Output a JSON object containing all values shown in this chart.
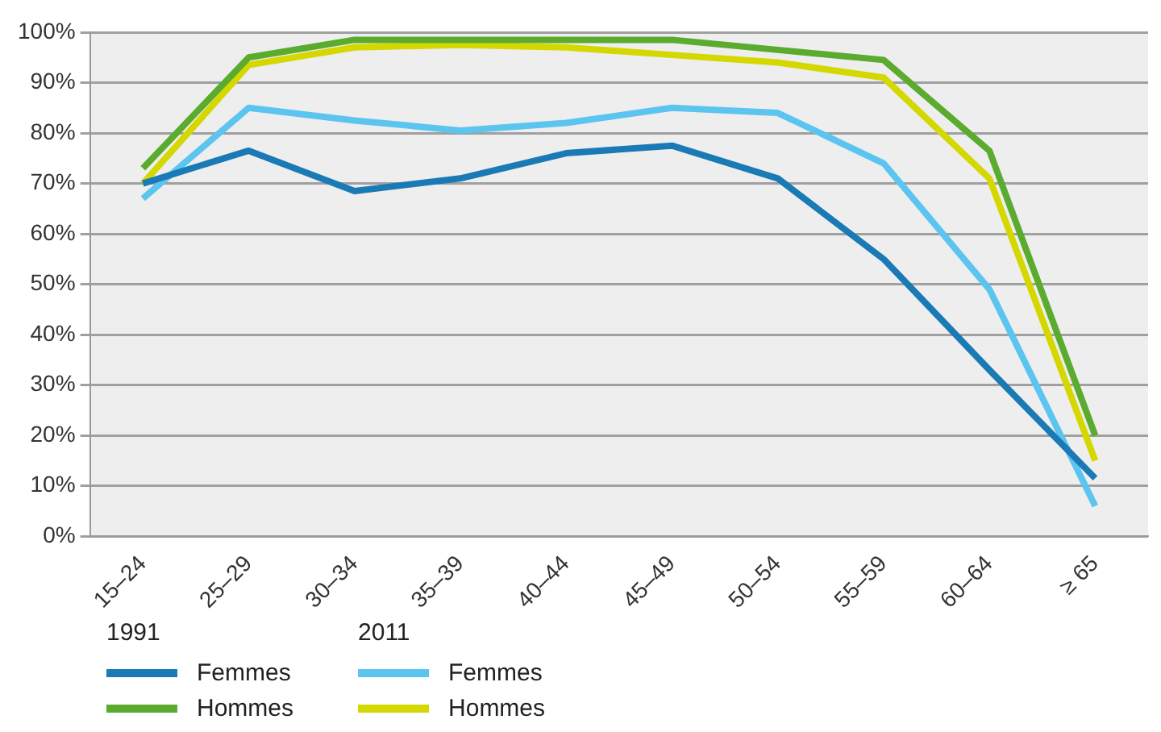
{
  "chart_data": {
    "type": "line",
    "categories": [
      "15–24",
      "25–29",
      "30–34",
      "35–39",
      "40–44",
      "45–49",
      "50–54",
      "55–59",
      "60–64",
      "≥ 65"
    ],
    "series": [
      {
        "name": "Femmes",
        "color": "#1a7ab5",
        "values": [
          70,
          76.5,
          68.5,
          71,
          76,
          77.5,
          71,
          55,
          33,
          11.5
        ]
      },
      {
        "name": "Hommes",
        "color": "#5aab2e",
        "values": [
          73,
          95,
          98.5,
          98.5,
          98.5,
          98.5,
          96.5,
          94.5,
          76.5,
          20
        ]
      },
      {
        "name": "Femmes",
        "color": "#5bc5f0",
        "values": [
          67,
          85,
          82.5,
          80.5,
          82,
          85,
          84,
          74,
          49,
          6
        ]
      },
      {
        "name": "Hommes",
        "color": "#d4d800",
        "values": [
          70,
          93.5,
          97,
          97.5,
          97,
          95.5,
          94,
          91,
          71,
          15
        ]
      }
    ],
    "annotations": [
      "1991",
      "2011"
    ],
    "ylim": [
      0,
      100
    ],
    "yticks": [
      {
        "value": 0,
        "label": "0%"
      },
      {
        "value": 10,
        "label": "10%"
      },
      {
        "value": 20,
        "label": "20%"
      },
      {
        "value": 30,
        "label": "30%"
      },
      {
        "value": 40,
        "label": "40%"
      },
      {
        "value": 50,
        "label": "50%"
      },
      {
        "value": 60,
        "label": "60%"
      },
      {
        "value": 70,
        "label": "70%"
      },
      {
        "value": 80,
        "label": "80%"
      },
      {
        "value": 90,
        "label": "90%"
      },
      {
        "value": 100,
        "label": "100%"
      }
    ],
    "grid": "y",
    "legend": "bottom left",
    "marker": "none",
    "line_style": "solid"
  }
}
